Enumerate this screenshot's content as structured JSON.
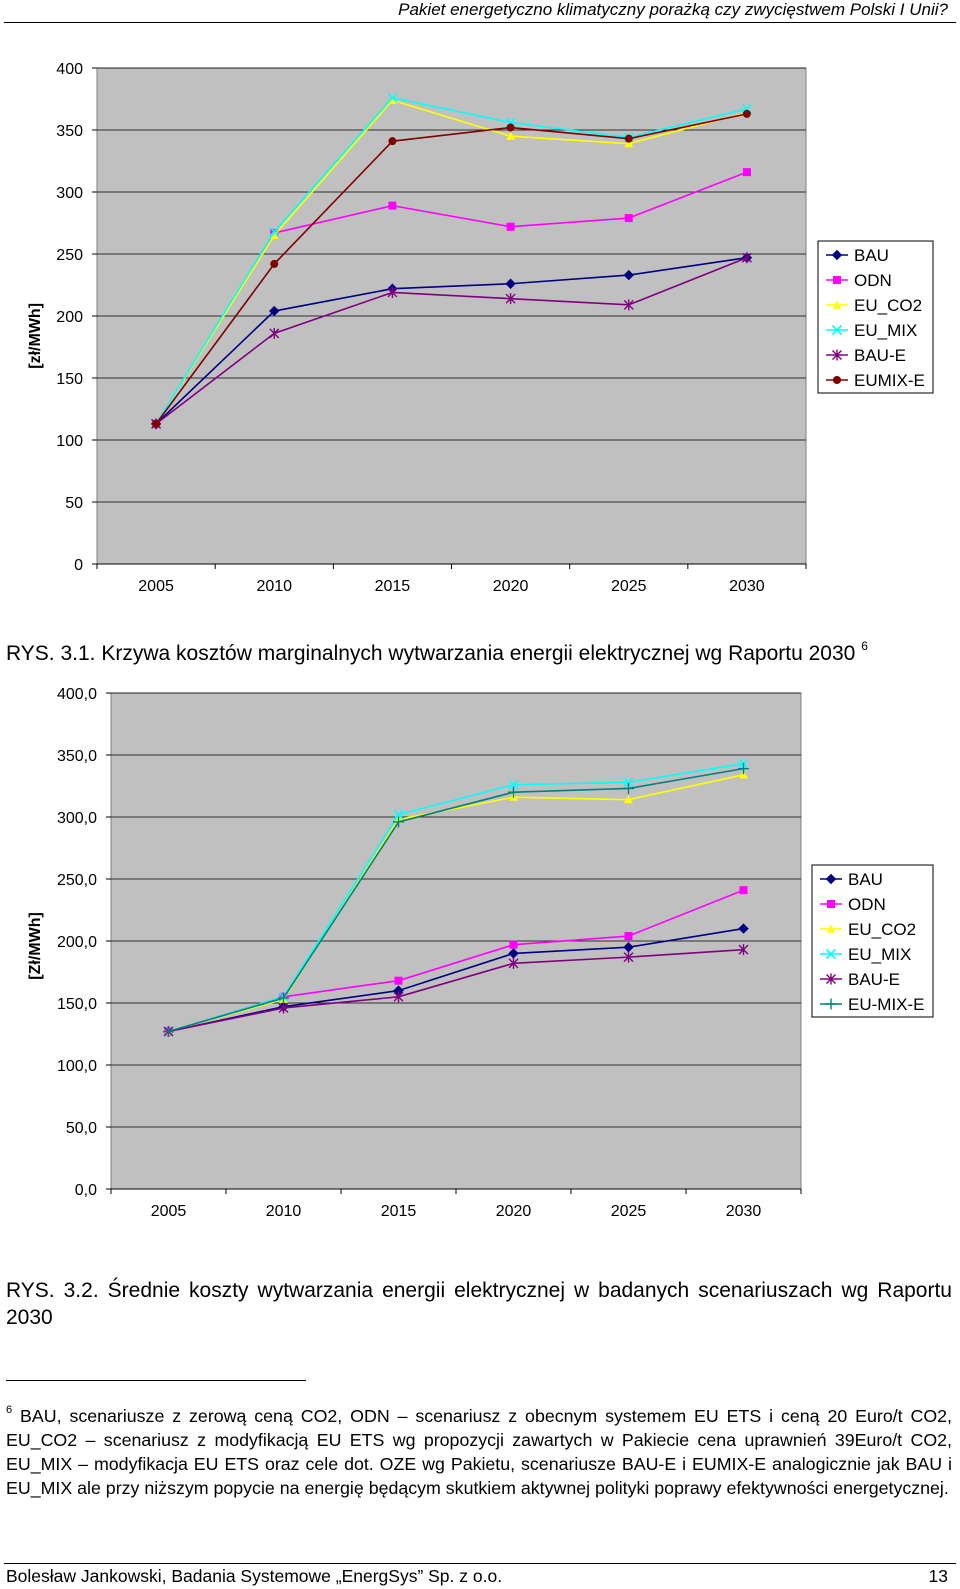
{
  "header": {
    "title": "Pakiet energetyczno klimatyczny porażką czy zwycięstwem Polski I Unii?"
  },
  "chart_data": [
    {
      "type": "line",
      "ylabel": "[zł/MWh]",
      "ylim": [
        0,
        400
      ],
      "yticks": [
        "0",
        "50",
        "100",
        "150",
        "200",
        "250",
        "300",
        "350",
        "400"
      ],
      "categories": [
        "2005",
        "2010",
        "2015",
        "2020",
        "2025",
        "2030"
      ],
      "grid": true,
      "legend": "right",
      "series": [
        {
          "name": "BAU",
          "marker": "diamond",
          "color": "#000080",
          "values": [
            113,
            204,
            222,
            226,
            233,
            247
          ]
        },
        {
          "name": "ODN",
          "marker": "square",
          "color": "#FF00FF",
          "values": [
            113,
            267,
            289,
            272,
            279,
            316
          ]
        },
        {
          "name": "EU_CO2",
          "marker": "triangle",
          "color": "#FFFF00",
          "values": [
            113,
            265,
            374,
            345,
            339,
            364
          ]
        },
        {
          "name": "EU_MIX",
          "marker": "x",
          "color": "#00FFFF",
          "values": [
            113,
            268,
            376,
            356,
            344,
            367
          ]
        },
        {
          "name": "BAU-E",
          "marker": "star",
          "color": "#800080",
          "values": [
            113,
            186,
            219,
            214,
            209,
            247
          ]
        },
        {
          "name": "EUMIX-E",
          "marker": "circle",
          "color": "#800000",
          "values": [
            113,
            242,
            341,
            352,
            343,
            363
          ]
        }
      ]
    },
    {
      "type": "line",
      "ylabel": "[Zł/MWh]",
      "ylim": [
        0,
        400
      ],
      "yticks": [
        "0,0",
        "50,0",
        "100,0",
        "150,0",
        "200,0",
        "250,0",
        "300,0",
        "350,0",
        "400,0"
      ],
      "categories": [
        "2005",
        "2010",
        "2015",
        "2020",
        "2025",
        "2030"
      ],
      "grid": true,
      "legend": "right",
      "series": [
        {
          "name": "BAU",
          "marker": "diamond",
          "color": "#000080",
          "values": [
            127,
            147,
            160,
            190,
            195,
            210
          ]
        },
        {
          "name": "ODN",
          "marker": "square",
          "color": "#FF00FF",
          "values": [
            127,
            155,
            168,
            197,
            204,
            241
          ]
        },
        {
          "name": "EU_CO2",
          "marker": "triangle",
          "color": "#FFFF00",
          "values": [
            127,
            153,
            298,
            316,
            314,
            334
          ]
        },
        {
          "name": "EU_MIX",
          "marker": "x",
          "color": "#00FFFF",
          "values": [
            127,
            155,
            302,
            326,
            328,
            343
          ]
        },
        {
          "name": "BAU-E",
          "marker": "star",
          "color": "#800080",
          "values": [
            127,
            146,
            155,
            182,
            187,
            193
          ]
        },
        {
          "name": "EU-MIX-E",
          "marker": "plus",
          "color": "#008080",
          "values": [
            127,
            154,
            296,
            320,
            323,
            339
          ]
        }
      ]
    }
  ],
  "captions": {
    "fig1": "RYS. 3.1. Krzywa kosztów marginalnych wytwarzania energii elektrycznej wg Raportu 2030",
    "fig1_ref": "6",
    "fig2": "RYS. 3.2. Średnie koszty wytwarzania energii elektrycznej w badanych scenariuszach wg Raportu 2030"
  },
  "footnote": {
    "number": "6",
    "text": "BAU, scenariusze z zerową ceną CO2, ODN – scenariusz z obecnym systemem EU ETS i ceną 20 Euro/t CO2, EU_CO2 – scenariusz z modyfikacją EU ETS wg propozycji zawartych w Pakiecie cena uprawnień 39Euro/t CO2, EU_MIX – modyfikacja EU ETS oraz cele dot. OZE wg Pakietu, scenariusze BAU-E i EUMIX-E analogicznie jak BAU i EU_MIX ale przy niższym popycie na energię będącym skutkiem aktywnej polityki poprawy efektywności energetycznej."
  },
  "footer": {
    "left": "Bolesław Jankowski, Badania Systemowe „EnergSys” Sp. z o.o.",
    "page": "13"
  }
}
